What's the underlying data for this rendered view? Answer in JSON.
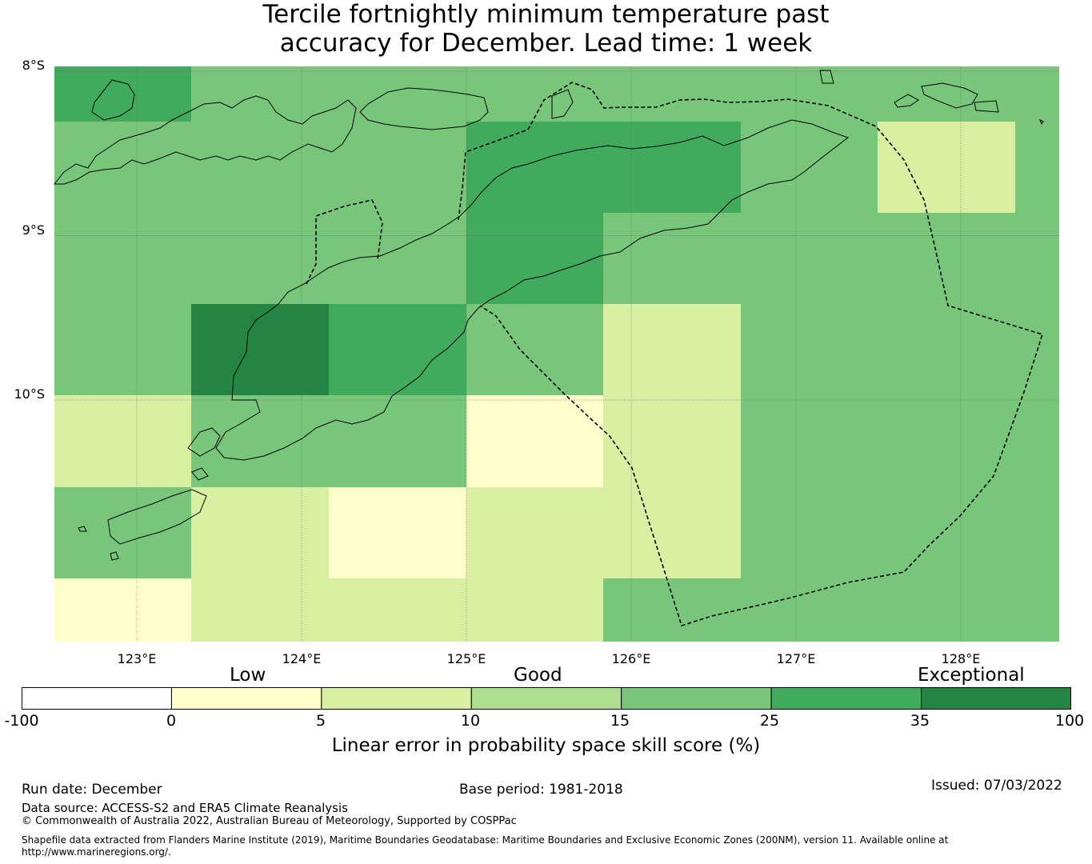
{
  "title": {
    "line1": "Tercile fortnightly minimum temperature past",
    "line2": "accuracy for December. Lead time: 1 week"
  },
  "map": {
    "lat_labels": [
      "8°S",
      "9°S",
      "10°S"
    ],
    "lon_labels": [
      "123°E",
      "124°E",
      "125°E",
      "126°E",
      "127°E",
      "128°E"
    ],
    "lat_grid_values": [
      -8,
      -9,
      -10
    ],
    "lon_grid_values": [
      123,
      124,
      125,
      126,
      127,
      128
    ],
    "cell_rows": [
      {
        "cells": [
          30,
          20,
          20,
          15,
          15,
          15,
          15,
          20
        ]
      },
      {
        "cells": [
          20,
          15,
          20,
          30,
          30,
          20,
          8,
          15
        ]
      },
      {
        "cells": [
          15,
          20,
          20,
          30,
          15,
          15,
          15,
          15
        ]
      },
      {
        "cells": [
          15,
          40,
          30,
          20,
          8,
          15,
          15,
          20
        ]
      },
      {
        "cells": [
          8,
          20,
          15,
          3,
          8,
          15,
          15,
          15
        ]
      },
      {
        "cells": [
          15,
          8,
          3,
          8,
          8,
          15,
          20,
          20
        ]
      },
      {
        "cells": [
          3,
          8,
          8,
          8,
          15,
          15,
          15,
          15
        ]
      }
    ],
    "colors": {
      "ocean_border": "#000000",
      "grid": "#666666"
    }
  },
  "colorbar": {
    "categories": [
      "Low",
      "Good",
      "Exceptional"
    ],
    "ticks": [
      "-100",
      "0",
      "5",
      "10",
      "15",
      "25",
      "35",
      "100"
    ],
    "colors": [
      "#ffffff",
      "#ffffcc",
      "#d9f0a3",
      "#addd8e",
      "#78c679",
      "#41ab5d",
      "#238443"
    ],
    "title": "Linear error in probability space skill score (%)"
  },
  "footer": {
    "run_date": "Run date: December",
    "base_period": "Base period: 1981-2018",
    "issued": "Issued: 07/03/2022",
    "data_source": "Data source: ACCESS-S2 and ERA5 Climate Reanalysis",
    "copyright": "© Commonwealth of Australia 2022, Australian Bureau of Meteorology, Supported by COSPPac",
    "shapefile_line1": "Shapefile data extracted from Flanders Marine Institute (2019), Maritime Boundaries Geodatabase: Maritime Boundaries and Exclusive Economic Zones (200NM), version 11. Available online at",
    "shapefile_line2": "http://www.marineregions.org/."
  }
}
